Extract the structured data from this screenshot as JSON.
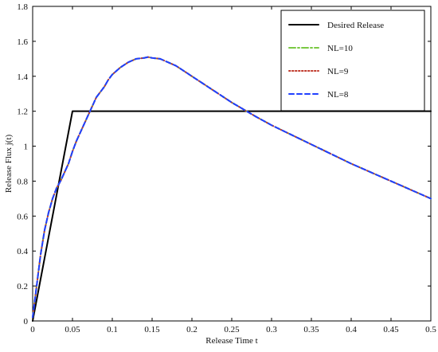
{
  "chart_data": {
    "type": "line",
    "xlabel": "Release Time t",
    "ylabel": "Release Flux j(t)",
    "xlim": [
      0,
      0.5
    ],
    "ylim": [
      0,
      1.8
    ],
    "xticks": [
      0,
      0.05,
      0.1,
      0.15,
      0.2,
      0.25,
      0.3,
      0.35,
      0.4,
      0.45,
      0.5
    ],
    "xtick_labels": [
      "0",
      "0.05",
      "0.1",
      "0.15",
      "0.2",
      "0.25",
      "0.3",
      "0.35",
      "0.4",
      "0.45",
      "0.5"
    ],
    "yticks": [
      0,
      0.2,
      0.4,
      0.6,
      0.8,
      1,
      1.2,
      1.4,
      1.6,
      1.8
    ],
    "ytick_labels": [
      "0",
      "0.2",
      "0.4",
      "0.6",
      "0.8",
      "1",
      "1.2",
      "1.4",
      "1.6",
      "1.8"
    ],
    "grid": false,
    "legend_position": "top-right",
    "series": [
      {
        "name": "Desired Release",
        "color": "#000000",
        "style": "solid",
        "x": [
          0,
          0.05,
          0.5
        ],
        "y": [
          0,
          1.2,
          1.2
        ]
      },
      {
        "name": "NL=10",
        "color": "#7ac943",
        "style": "dash-dot",
        "x": [
          0,
          0.005,
          0.01,
          0.015,
          0.02,
          0.025,
          0.03,
          0.035,
          0.04,
          0.045,
          0.05,
          0.055,
          0.06,
          0.065,
          0.07,
          0.075,
          0.08,
          0.085,
          0.09,
          0.095,
          0.1,
          0.11,
          0.12,
          0.13,
          0.14,
          0.145,
          0.15,
          0.16,
          0.17,
          0.18,
          0.19,
          0.2,
          0.22,
          0.25,
          0.28,
          0.3,
          0.35,
          0.4,
          0.45,
          0.5
        ],
        "y": [
          0.02,
          0.2,
          0.38,
          0.52,
          0.62,
          0.7,
          0.76,
          0.8,
          0.85,
          0.9,
          0.97,
          1.03,
          1.08,
          1.13,
          1.18,
          1.23,
          1.28,
          1.31,
          1.34,
          1.38,
          1.41,
          1.45,
          1.48,
          1.5,
          1.505,
          1.51,
          1.505,
          1.5,
          1.48,
          1.46,
          1.43,
          1.4,
          1.34,
          1.25,
          1.17,
          1.12,
          1.01,
          0.9,
          0.8,
          0.7
        ]
      },
      {
        "name": "NL=9",
        "color": "#c0392b",
        "style": "dotted",
        "x": [
          0,
          0.005,
          0.01,
          0.015,
          0.02,
          0.025,
          0.03,
          0.035,
          0.04,
          0.045,
          0.05,
          0.055,
          0.06,
          0.065,
          0.07,
          0.075,
          0.08,
          0.085,
          0.09,
          0.095,
          0.1,
          0.11,
          0.12,
          0.13,
          0.14,
          0.145,
          0.15,
          0.16,
          0.17,
          0.18,
          0.19,
          0.2,
          0.22,
          0.25,
          0.28,
          0.3,
          0.35,
          0.4,
          0.45,
          0.5
        ],
        "y": [
          0.02,
          0.2,
          0.38,
          0.52,
          0.62,
          0.7,
          0.76,
          0.8,
          0.85,
          0.9,
          0.97,
          1.03,
          1.08,
          1.13,
          1.18,
          1.23,
          1.28,
          1.31,
          1.34,
          1.38,
          1.41,
          1.45,
          1.48,
          1.5,
          1.505,
          1.51,
          1.505,
          1.5,
          1.48,
          1.46,
          1.43,
          1.4,
          1.34,
          1.25,
          1.17,
          1.12,
          1.01,
          0.9,
          0.8,
          0.7
        ]
      },
      {
        "name": "NL=8",
        "color": "#1f3fff",
        "style": "dashed",
        "x": [
          0,
          0.005,
          0.01,
          0.015,
          0.02,
          0.025,
          0.03,
          0.035,
          0.04,
          0.045,
          0.05,
          0.055,
          0.06,
          0.065,
          0.07,
          0.075,
          0.08,
          0.085,
          0.09,
          0.095,
          0.1,
          0.11,
          0.12,
          0.13,
          0.14,
          0.145,
          0.15,
          0.16,
          0.17,
          0.18,
          0.19,
          0.2,
          0.22,
          0.25,
          0.28,
          0.3,
          0.35,
          0.4,
          0.45,
          0.5
        ],
        "y": [
          0.02,
          0.2,
          0.38,
          0.52,
          0.62,
          0.7,
          0.76,
          0.8,
          0.85,
          0.9,
          0.97,
          1.03,
          1.08,
          1.13,
          1.18,
          1.23,
          1.28,
          1.31,
          1.34,
          1.38,
          1.41,
          1.45,
          1.48,
          1.5,
          1.505,
          1.51,
          1.505,
          1.5,
          1.48,
          1.46,
          1.43,
          1.4,
          1.34,
          1.25,
          1.17,
          1.12,
          1.01,
          0.9,
          0.8,
          0.7
        ]
      }
    ]
  }
}
